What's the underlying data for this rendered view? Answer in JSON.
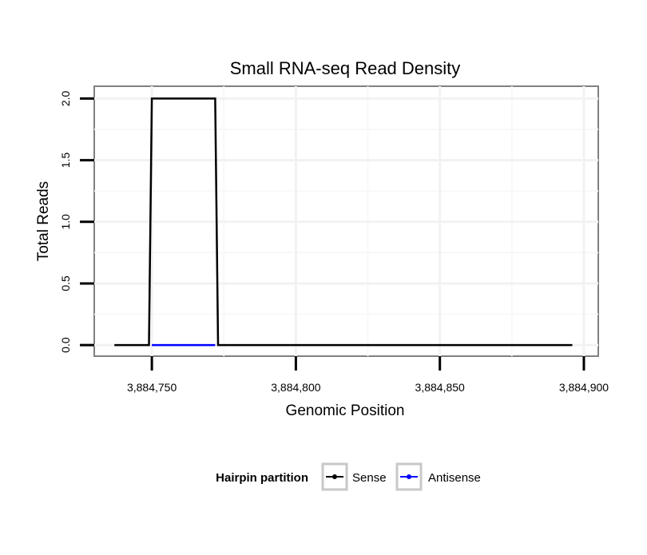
{
  "chart_data": {
    "type": "line",
    "title": "Small RNA-seq Read Density",
    "xlabel": "Genomic Position",
    "ylabel": "Total Reads",
    "xlim": [
      3884730,
      3884905
    ],
    "ylim": [
      -0.09,
      2.1
    ],
    "xticks": [
      3884750,
      3884800,
      3884850,
      3884900
    ],
    "xtick_labels": [
      "3,884,750",
      "3,884,800",
      "3,884,850",
      "3,884,900"
    ],
    "yticks": [
      0,
      0.5,
      1,
      1.5,
      2
    ],
    "ytick_labels": [
      "0.0",
      "0.5",
      "1.0",
      "1.5",
      "2.0"
    ],
    "grid": true,
    "series": [
      {
        "name": "Sense",
        "color": "#000000",
        "x": [
          3884737,
          3884749,
          3884750,
          3884772,
          3884773,
          3884896
        ],
        "y": [
          0,
          0,
          2,
          2,
          0,
          0
        ]
      },
      {
        "name": "Antisense",
        "color": "#0000ff",
        "x": [
          3884750,
          3884772
        ],
        "y": [
          0,
          0
        ]
      }
    ],
    "legend": {
      "title": "Hairpin partition",
      "placement": "bottom",
      "entries": [
        "Sense",
        "Antisense"
      ]
    }
  }
}
